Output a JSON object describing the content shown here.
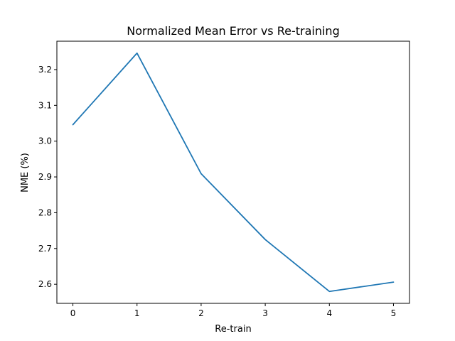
{
  "chart_data": {
    "type": "line",
    "title": "Normalized Mean Error vs Re-training",
    "xlabel": "Re-train",
    "ylabel": "NME (%)",
    "x": [
      0,
      1,
      2,
      3,
      4,
      5
    ],
    "series": [
      {
        "values": [
          3.046,
          3.246,
          2.909,
          2.725,
          2.58,
          2.606
        ]
      }
    ],
    "xlim": [
      -0.25,
      5.25
    ],
    "ylim": [
      2.5467,
      3.2793
    ],
    "xticks": [
      "0",
      "1",
      "2",
      "3",
      "4",
      "5"
    ],
    "yticks": [
      "2.6",
      "2.7",
      "2.8",
      "2.9",
      "3.0",
      "3.1",
      "3.2"
    ],
    "grid": false,
    "legend": "none",
    "colors": {
      "line": "#1f77b4",
      "axes": "#000000"
    }
  }
}
